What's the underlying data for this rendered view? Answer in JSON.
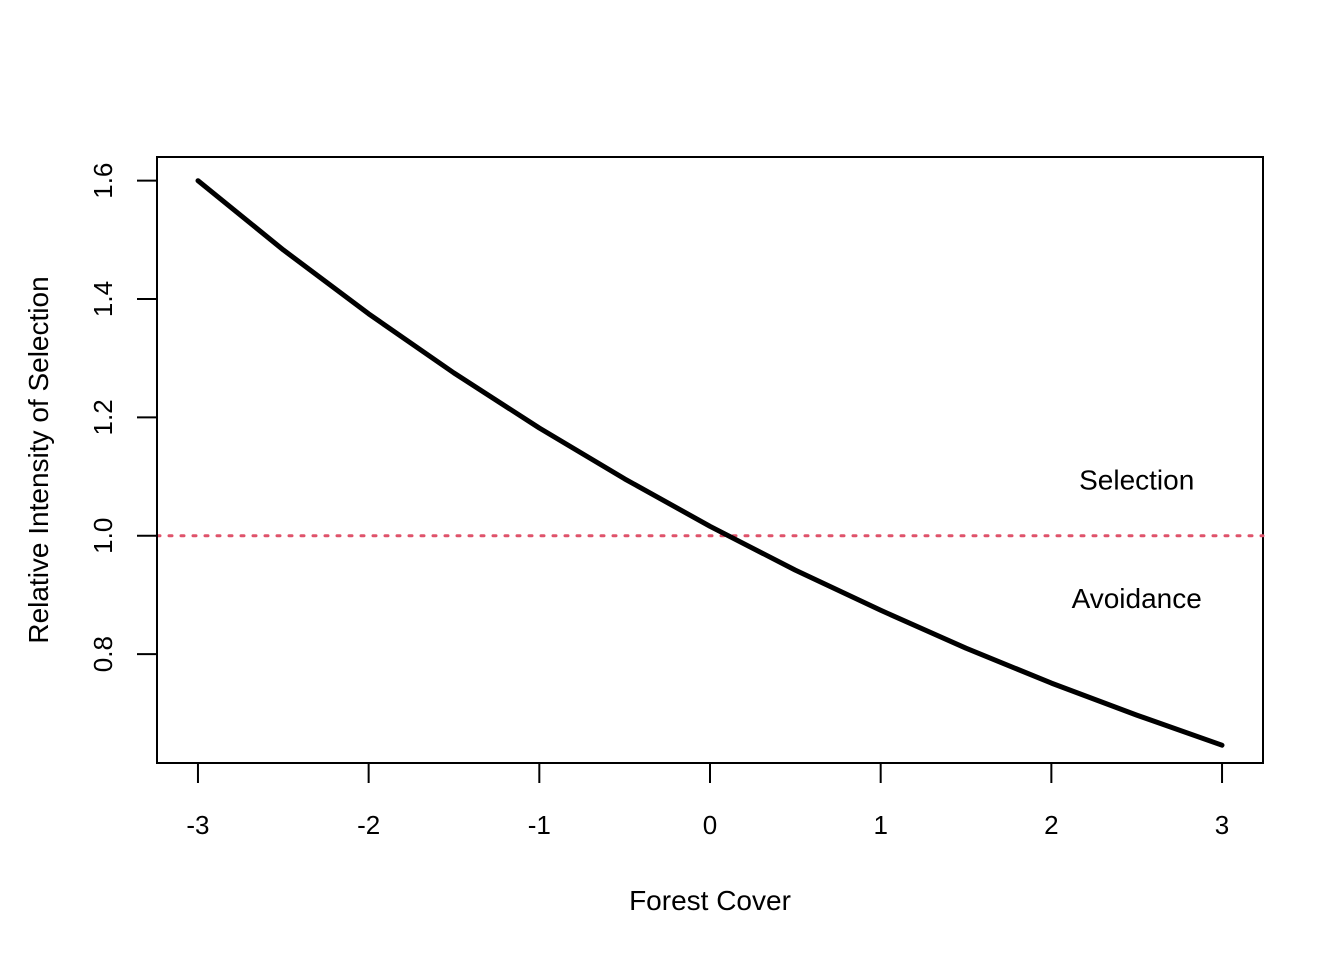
{
  "chart_data": {
    "type": "line",
    "title": "",
    "xlabel": "Forest Cover",
    "ylabel": "Relative Intensity of Selection",
    "xlim": [
      -3.24,
      3.24
    ],
    "ylim": [
      0.616,
      1.64
    ],
    "x_ticks": [
      -3,
      -2,
      -1,
      0,
      1,
      2,
      3
    ],
    "x_tick_labels": [
      "-3",
      "-2",
      "-1",
      "0",
      "1",
      "2",
      "3"
    ],
    "y_ticks": [
      0.8,
      1.0,
      1.2,
      1.4,
      1.6
    ],
    "y_tick_labels": [
      "0.8",
      "1.0",
      "1.2",
      "1.4",
      "1.6"
    ],
    "grid": false,
    "series": [
      {
        "color": "#000000",
        "line_style": "solid",
        "x": [
          -3,
          -2.5,
          -2,
          -1.5,
          -1,
          -0.5,
          0,
          0.5,
          1,
          1.5,
          2,
          2.5,
          3
        ],
        "y": [
          1.6,
          1.483,
          1.375,
          1.275,
          1.182,
          1.096,
          1.016,
          0.942,
          0.874,
          0.81,
          0.751,
          0.697,
          0.646
        ]
      }
    ],
    "reference_line": {
      "y": 1.0,
      "color": "#DF536B",
      "line_style": "dotted"
    },
    "annotations": [
      {
        "text": "Selection",
        "x": 2.5,
        "y": 1.095
      },
      {
        "text": "Avoidance",
        "x": 2.5,
        "y": 0.895
      }
    ]
  }
}
